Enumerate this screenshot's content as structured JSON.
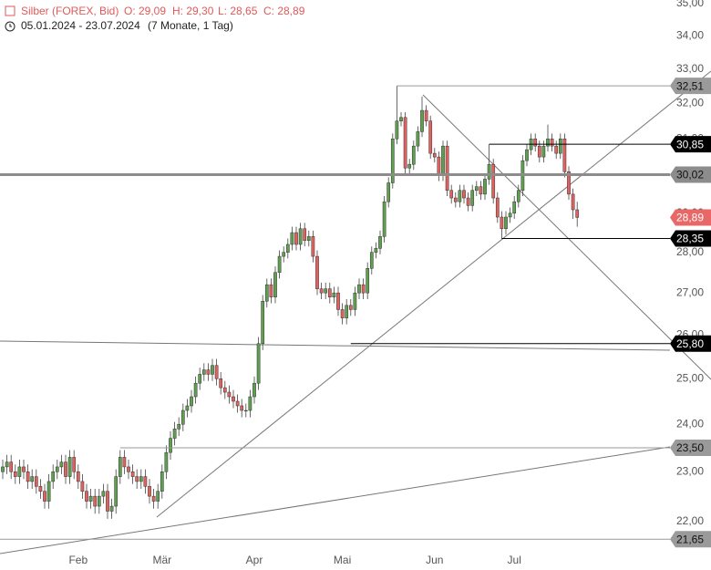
{
  "chart_data": {
    "type": "candlestick",
    "title": "Silber (FOREX, Bid)",
    "ohlc_labels": [
      "O: 29,09",
      "H: 29,30",
      "L: 28,65",
      "C: 28,89"
    ],
    "subtitle": "05.01.2024 - 23.07.2024",
    "period": "(7 Monate, 1 Tag)",
    "log_scale": true,
    "up_color": "#5f9f4f",
    "down_color": "#e0625f",
    "ylim": [
      21.06,
      35.11
    ],
    "yticks": [
      {
        "value": 22,
        "label": "22,00"
      },
      {
        "value": 23,
        "label": "23,00"
      },
      {
        "value": 24,
        "label": "24,00"
      },
      {
        "value": 25,
        "label": "25,00"
      },
      {
        "value": 26,
        "label": "26,00"
      },
      {
        "value": 27,
        "label": "27,00"
      },
      {
        "value": 28,
        "label": "28,00"
      },
      {
        "value": 29,
        "label": "29,00"
      },
      {
        "value": 30,
        "label": "30,00"
      },
      {
        "value": 31,
        "label": "31,00"
      },
      {
        "value": 32,
        "label": "32,00"
      },
      {
        "value": 33,
        "label": "33,00"
      },
      {
        "value": 34,
        "label": "34,00"
      },
      {
        "value": 35,
        "label": "35,00"
      }
    ],
    "categories": [
      null,
      null,
      null,
      null,
      null,
      null,
      null,
      null,
      null,
      null,
      null,
      null,
      null,
      null,
      null,
      null,
      null,
      null,
      "Feb",
      null,
      null,
      null,
      null,
      null,
      null,
      null,
      null,
      null,
      null,
      null,
      null,
      null,
      null,
      null,
      null,
      null,
      null,
      null,
      "Mär",
      null,
      null,
      null,
      null,
      null,
      null,
      null,
      null,
      null,
      null,
      null,
      null,
      null,
      null,
      null,
      null,
      null,
      null,
      null,
      null,
      null,
      "Apr",
      null,
      null,
      null,
      null,
      null,
      null,
      null,
      null,
      null,
      null,
      null,
      null,
      null,
      null,
      null,
      null,
      null,
      null,
      null,
      null,
      "Mai",
      null,
      null,
      null,
      null,
      null,
      null,
      null,
      null,
      null,
      null,
      null,
      null,
      null,
      null,
      null,
      null,
      null,
      null,
      null,
      null,
      null,
      "Jun",
      null,
      null,
      null,
      null,
      null,
      null,
      null,
      null,
      null,
      null,
      null,
      null,
      null,
      null,
      null,
      null,
      null,
      null,
      "Jul",
      null,
      null,
      null,
      null,
      null,
      null,
      null,
      null,
      null,
      null,
      null,
      null,
      null,
      null,
      null
    ],
    "open": [
      23.0,
      23.1,
      23.2,
      23.0,
      22.9,
      23.1,
      23.0,
      22.8,
      22.9,
      22.7,
      22.6,
      22.4,
      22.8,
      23.0,
      23.1,
      23.2,
      22.9,
      23.3,
      23.0,
      22.8,
      22.6,
      22.4,
      22.5,
      22.3,
      22.5,
      22.6,
      22.2,
      22.3,
      22.9,
      23.3,
      23.1,
      23.0,
      22.9,
      22.8,
      22.9,
      22.7,
      22.5,
      22.4,
      22.6,
      23.0,
      23.4,
      23.7,
      23.9,
      24.0,
      24.3,
      24.4,
      24.6,
      24.9,
      25.1,
      25.2,
      25.1,
      25.3,
      25.0,
      24.8,
      24.7,
      24.6,
      24.5,
      24.4,
      24.3,
      24.3,
      24.6,
      24.9,
      25.8,
      26.8,
      27.2,
      26.9,
      27.5,
      27.9,
      28.0,
      28.2,
      28.5,
      28.2,
      28.6,
      28.3,
      28.4,
      27.9,
      27.1,
      27.0,
      27.1,
      26.9,
      27.0,
      26.6,
      26.4,
      26.7,
      26.6,
      27.0,
      27.2,
      27.0,
      27.6,
      28.0,
      28.1,
      28.4,
      29.3,
      29.8,
      31.0,
      31.5,
      31.6,
      30.2,
      30.3,
      30.8,
      31.2,
      31.8,
      31.5,
      30.6,
      30.5,
      30.0,
      30.8,
      29.6,
      29.4,
      29.3,
      29.6,
      29.4,
      29.2,
      29.6,
      29.7,
      29.5,
      29.9,
      30.3,
      29.4,
      28.9,
      28.6,
      28.9,
      29.0,
      29.3,
      29.6,
      30.4,
      30.7,
      31.0,
      30.8,
      30.5,
      30.8,
      31.0,
      30.8,
      30.6,
      31.0,
      30.1,
      29.5,
      29.09
    ],
    "high": [
      23.25,
      23.35,
      23.35,
      23.15,
      23.25,
      23.25,
      23.15,
      23.05,
      23.05,
      22.85,
      22.75,
      22.95,
      23.15,
      23.25,
      23.35,
      23.35,
      23.45,
      23.45,
      23.15,
      22.95,
      22.75,
      22.65,
      22.65,
      22.65,
      22.75,
      22.75,
      22.45,
      23.05,
      23.45,
      23.45,
      23.25,
      23.15,
      23.05,
      23.05,
      23.05,
      22.85,
      22.65,
      22.75,
      23.15,
      23.55,
      23.85,
      24.05,
      24.15,
      24.45,
      24.55,
      24.75,
      25.05,
      25.25,
      25.35,
      25.35,
      25.45,
      25.45,
      25.15,
      24.95,
      24.85,
      24.75,
      24.65,
      24.55,
      24.45,
      24.75,
      25.05,
      25.95,
      26.95,
      27.35,
      27.35,
      27.65,
      28.05,
      28.15,
      28.35,
      28.65,
      28.65,
      28.75,
      28.75,
      28.55,
      28.55,
      28.05,
      27.25,
      27.25,
      27.25,
      27.15,
      27.15,
      26.75,
      26.85,
      26.85,
      27.15,
      27.35,
      27.35,
      27.75,
      28.15,
      28.25,
      28.55,
      29.45,
      29.95,
      31.15,
      32.51,
      31.75,
      31.75,
      30.45,
      30.95,
      31.35,
      32.2,
      31.95,
      31.65,
      30.75,
      30.65,
      30.95,
      30.95,
      29.75,
      29.55,
      29.75,
      29.75,
      29.55,
      29.75,
      29.85,
      29.85,
      30.05,
      30.85,
      30.45,
      29.55,
      29.05,
      29.05,
      29.15,
      29.45,
      29.75,
      30.55,
      30.85,
      31.15,
      31.15,
      30.95,
      30.95,
      31.4,
      31.15,
      30.95,
      31.15,
      31.15,
      30.25,
      29.65,
      29.3
    ],
    "low": [
      22.85,
      22.95,
      22.85,
      22.75,
      22.75,
      22.85,
      22.65,
      22.65,
      22.55,
      22.45,
      22.25,
      22.25,
      22.65,
      22.85,
      22.95,
      22.75,
      22.75,
      22.85,
      22.65,
      22.45,
      22.25,
      22.25,
      22.15,
      22.15,
      22.35,
      22.05,
      22.05,
      22.15,
      22.75,
      22.95,
      22.85,
      22.75,
      22.65,
      22.65,
      22.55,
      22.35,
      22.25,
      22.25,
      22.45,
      22.85,
      23.25,
      23.55,
      23.75,
      23.85,
      24.15,
      24.25,
      24.45,
      24.75,
      24.95,
      24.95,
      24.95,
      24.85,
      24.65,
      24.55,
      24.45,
      24.35,
      24.25,
      24.15,
      24.15,
      24.15,
      24.45,
      24.75,
      25.65,
      26.65,
      26.75,
      26.75,
      27.35,
      27.75,
      27.85,
      28.05,
      28.05,
      28.05,
      28.15,
      28.15,
      27.75,
      26.95,
      26.85,
      26.85,
      26.75,
      26.75,
      26.45,
      26.25,
      26.25,
      26.45,
      26.45,
      26.85,
      26.85,
      26.85,
      27.45,
      27.85,
      27.95,
      28.25,
      29.15,
      29.65,
      30.85,
      31.35,
      30.05,
      30.05,
      30.15,
      30.65,
      31.05,
      31.35,
      30.45,
      30.35,
      29.85,
      29.85,
      29.45,
      29.25,
      29.15,
      29.15,
      29.25,
      29.05,
      29.05,
      29.45,
      29.35,
      29.35,
      29.75,
      29.25,
      28.75,
      28.35,
      28.45,
      28.75,
      28.85,
      29.15,
      29.45,
      30.25,
      30.55,
      30.65,
      30.35,
      30.35,
      30.65,
      30.65,
      30.45,
      30.45,
      29.95,
      29.35,
      28.85,
      28.65
    ],
    "close": [
      23.1,
      23.2,
      23.0,
      22.9,
      23.1,
      23.0,
      22.8,
      22.9,
      22.7,
      22.6,
      22.4,
      22.8,
      23.0,
      23.1,
      23.2,
      22.9,
      23.3,
      23.0,
      22.8,
      22.6,
      22.4,
      22.5,
      22.3,
      22.5,
      22.6,
      22.2,
      22.3,
      22.9,
      23.3,
      23.1,
      23.0,
      22.9,
      22.8,
      22.9,
      22.7,
      22.5,
      22.4,
      22.6,
      23.0,
      23.4,
      23.7,
      23.9,
      24.0,
      24.3,
      24.4,
      24.6,
      24.9,
      25.1,
      25.2,
      25.1,
      25.3,
      25.0,
      24.8,
      24.7,
      24.6,
      24.5,
      24.4,
      24.3,
      24.3,
      24.6,
      24.9,
      25.8,
      26.8,
      27.2,
      26.9,
      27.5,
      27.9,
      28.0,
      28.2,
      28.5,
      28.2,
      28.6,
      28.3,
      28.4,
      27.9,
      27.1,
      27.0,
      27.1,
      26.9,
      27.0,
      26.6,
      26.4,
      26.7,
      26.6,
      27.0,
      27.2,
      27.0,
      27.6,
      28.0,
      28.1,
      28.4,
      29.3,
      29.8,
      31.0,
      31.5,
      31.6,
      30.2,
      30.3,
      30.8,
      31.2,
      31.8,
      31.5,
      30.6,
      30.5,
      30.0,
      30.8,
      29.6,
      29.4,
      29.3,
      29.6,
      29.4,
      29.2,
      29.6,
      29.7,
      29.5,
      29.9,
      30.3,
      29.4,
      28.9,
      28.6,
      28.9,
      29.0,
      29.3,
      29.6,
      30.4,
      30.7,
      31.0,
      30.8,
      30.5,
      30.8,
      31.0,
      30.8,
      30.6,
      31.0,
      30.1,
      29.5,
      29.09,
      28.89
    ],
    "levels": [
      {
        "value": 32.51,
        "label": "32,51",
        "color": "#9a9a9a",
        "from": 94
      },
      {
        "value": 30.85,
        "label": "30,85",
        "color": "#000000",
        "from": 116
      },
      {
        "value": 30.02,
        "label": "30,02",
        "color": "#8c8c8c",
        "from": 0
      },
      {
        "value": 28.89,
        "label": "28,89",
        "color": "#e86868"
      },
      {
        "value": 28.35,
        "label": "28,35",
        "color": "#000000",
        "from": 119
      },
      {
        "value": 25.8,
        "label": "25,80",
        "color": "#000000",
        "from": 83
      },
      {
        "value": 23.5,
        "label": "23,50",
        "color": "#9a9a9a",
        "from": 28
      },
      {
        "value": 21.65,
        "label": "21,65",
        "color": "#9a9a9a",
        "from": 0
      }
    ]
  }
}
